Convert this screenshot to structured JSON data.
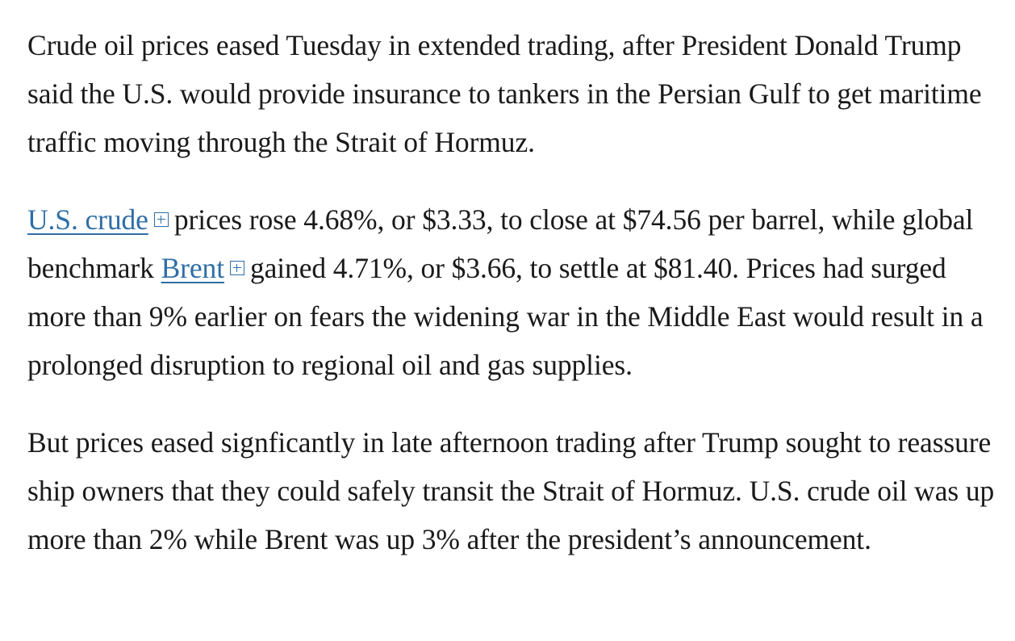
{
  "article": {
    "paragraph_1": {
      "text": "Crude oil prices eased Tuesday in extended trading, after President Donald Trump said the U.S. would provide insurance to tankers in the Persian Gulf to get maritime traffic moving through the Strait of Hormuz."
    },
    "paragraph_2": {
      "link_us_crude": "U.S. crude",
      "text_after_us_crude": " prices rose 4.68%, or $3.33, to close at $74.56 per barrel, while global benchmark ",
      "link_brent": "Brent",
      "text_after_brent": " gained 4.71%, or $3.66, to settle at $81.40. Prices had surged more than 9% earlier on fears the widening war in the Middle East would result in a prolonged disruption to regional oil and gas supplies."
    },
    "paragraph_3": {
      "text": "But prices eased signficantly in late afternoon trading after Trump sought to reassure ship owners that they could safely transit the Strait of Hormuz. U.S. crude oil was up more than 2% while Brent was up 3% after the president’s announcement."
    },
    "icons": {
      "quote_toggle": "plus-square-icon"
    },
    "colors": {
      "text": "#1a1a1a",
      "link": "#2f6ea6",
      "background": "#ffffff"
    }
  }
}
